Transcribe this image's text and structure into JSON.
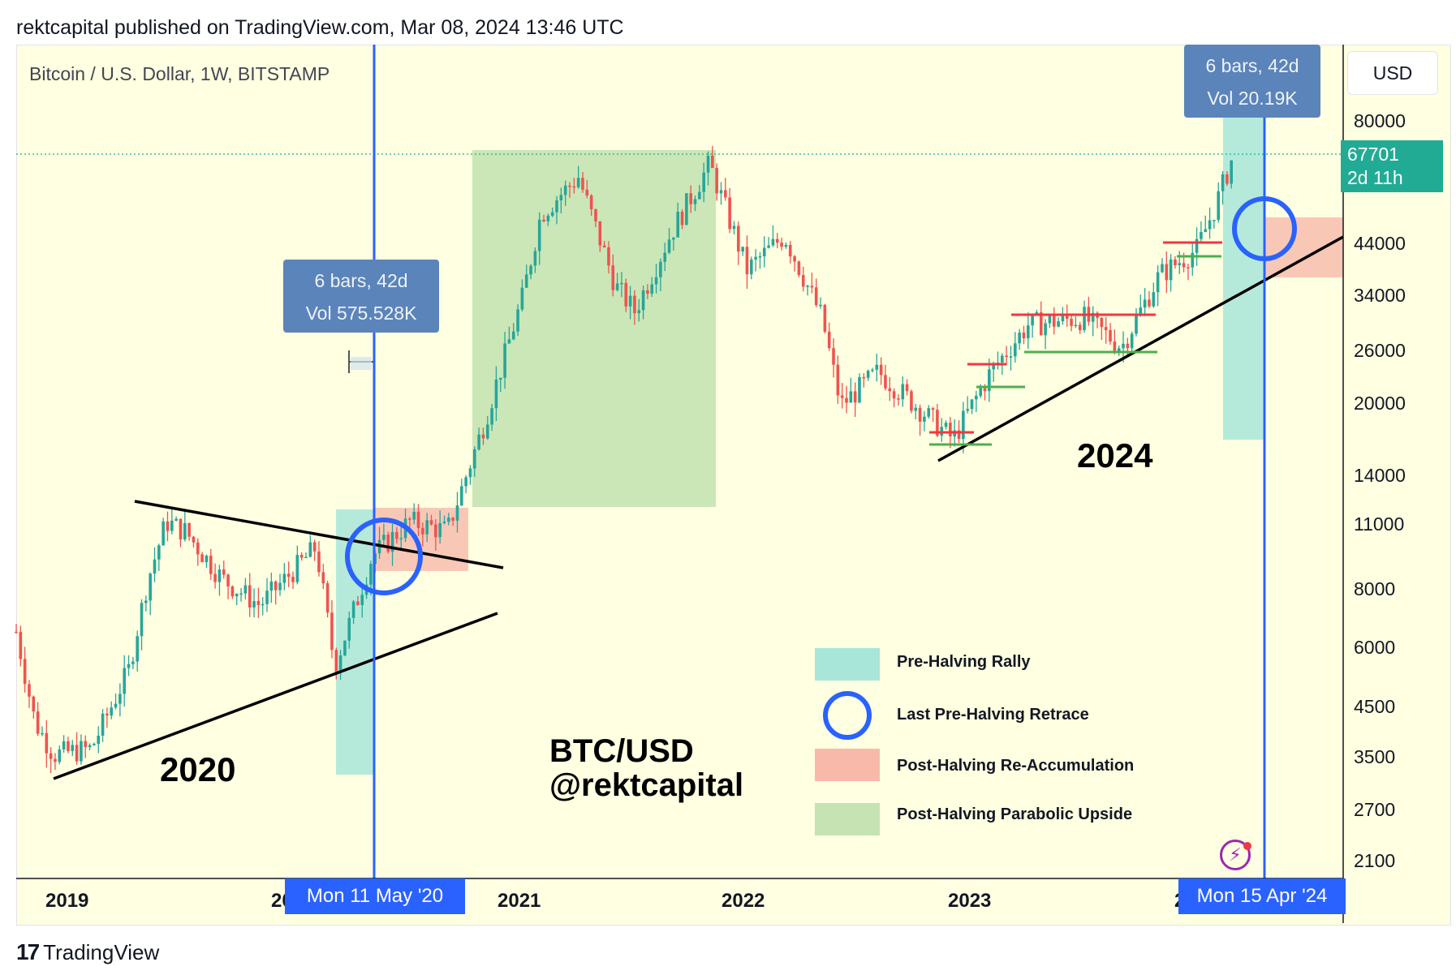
{
  "header": {
    "text": "rektcapital published on TradingView.com, Mar 08, 2024 13:46 UTC"
  },
  "chart": {
    "symbol": "Bitcoin / U.S. Dollar, 1W, BITSTAMP",
    "currency": "USD",
    "last_price": "67701",
    "countdown": "2d 11h",
    "watermark_line1": "BTC/USD",
    "watermark_line2": "@rektcapital",
    "label_2020": "2020",
    "label_2024": "2024"
  },
  "measure_left": {
    "line1": "6 bars, 42d",
    "line2": "Vol 575.528K"
  },
  "measure_right": {
    "line1": "6 bars, 42d",
    "line2": "Vol 20.19K"
  },
  "date_badges": {
    "left": "Mon 11 May '20",
    "right": "Mon 15 Apr '24"
  },
  "legend": {
    "items": [
      {
        "label": "Pre-Halving Rally",
        "color": "#a8e6d9"
      },
      {
        "label": "Last Pre-Halving Retrace",
        "color": "#2962ff"
      },
      {
        "label": "Post-Halving Re-Accumulation",
        "color": "#f8b9ab"
      },
      {
        "label": "Post-Halving Parabolic Upside",
        "color": "#c5e3b3"
      }
    ]
  },
  "footer": {
    "brand": "TradingView",
    "logo": "17"
  },
  "colors": {
    "up": "#26a69a",
    "down": "#ef5350",
    "vline": "#2962ff",
    "bg": "#ffffe1"
  },
  "chart_data": {
    "type": "candlestick",
    "title": "Bitcoin / U.S. Dollar, 1W, BITSTAMP",
    "scale": "log",
    "x_ticks": [
      "2019",
      "2020",
      "2021",
      "2022",
      "2023",
      "2024"
    ],
    "y_ticks": [
      80000,
      44000,
      34000,
      26000,
      20000,
      14000,
      11000,
      8000,
      6000,
      4500,
      3500,
      2700,
      2100
    ],
    "ylim": [
      1900,
      100000
    ],
    "series_approx_close": [
      {
        "date": "2018-10",
        "value": 6400
      },
      {
        "date": "2018-11",
        "value": 4100
      },
      {
        "date": "2018-12",
        "value": 3500
      },
      {
        "date": "2019-02",
        "value": 3600
      },
      {
        "date": "2019-04",
        "value": 5300
      },
      {
        "date": "2019-05",
        "value": 8200
      },
      {
        "date": "2019-06",
        "value": 11000
      },
      {
        "date": "2019-07",
        "value": 10500
      },
      {
        "date": "2019-09",
        "value": 8300
      },
      {
        "date": "2019-11",
        "value": 7300
      },
      {
        "date": "2020-02",
        "value": 9700
      },
      {
        "date": "2020-03",
        "value": 5400
      },
      {
        "date": "2020-05",
        "value": 9300
      },
      {
        "date": "2020-07",
        "value": 11000
      },
      {
        "date": "2020-09",
        "value": 10500
      },
      {
        "date": "2020-11",
        "value": 18000
      },
      {
        "date": "2021-01",
        "value": 33000
      },
      {
        "date": "2021-02",
        "value": 50000
      },
      {
        "date": "2021-04",
        "value": 60000
      },
      {
        "date": "2021-06",
        "value": 35000
      },
      {
        "date": "2021-07",
        "value": 31000
      },
      {
        "date": "2021-09",
        "value": 46000
      },
      {
        "date": "2021-11",
        "value": 64000
      },
      {
        "date": "2022-01",
        "value": 38000
      },
      {
        "date": "2022-03",
        "value": 45000
      },
      {
        "date": "2022-05",
        "value": 30000
      },
      {
        "date": "2022-06",
        "value": 19500
      },
      {
        "date": "2022-08",
        "value": 23000
      },
      {
        "date": "2022-10",
        "value": 19500
      },
      {
        "date": "2022-12",
        "value": 16500
      },
      {
        "date": "2023-02",
        "value": 23000
      },
      {
        "date": "2023-04",
        "value": 29000
      },
      {
        "date": "2023-07",
        "value": 30000
      },
      {
        "date": "2023-09",
        "value": 26000
      },
      {
        "date": "2023-11",
        "value": 37000
      },
      {
        "date": "2024-01",
        "value": 42000
      },
      {
        "date": "2024-02",
        "value": 52000
      },
      {
        "date": "2024-03",
        "value": 67701
      }
    ],
    "annotations": [
      "2020",
      "2024",
      "BTC/USD",
      "@rektcapital"
    ]
  }
}
